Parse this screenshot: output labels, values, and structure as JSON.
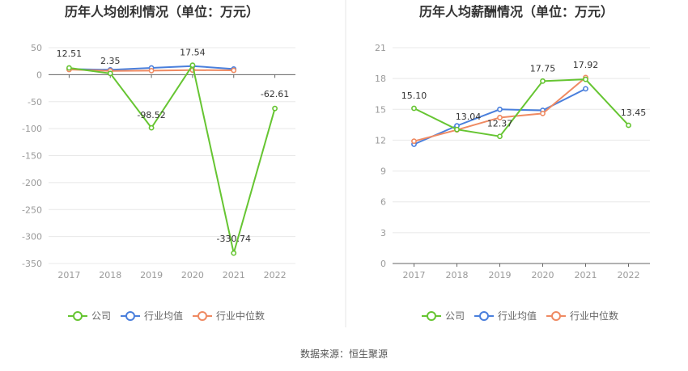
{
  "source_text": "数据来源：恒生聚源",
  "colors": {
    "company": "#66c532",
    "avg": "#4a7fdc",
    "median": "#ef8a62",
    "grid": "#e8e8e8",
    "axis": "#999999",
    "divider": "#e6e6e6"
  },
  "chart_data": [
    {
      "type": "line",
      "title": "历年人均创利情况（单位：万元）",
      "categories": [
        "2017",
        "2018",
        "2019",
        "2020",
        "2021",
        "2022"
      ],
      "ylim": [
        -350,
        50
      ],
      "yticks": [
        50,
        0,
        -50,
        -100,
        -150,
        -200,
        -250,
        -300,
        -350
      ],
      "grid": true,
      "legend": "bottom",
      "series": [
        {
          "name": "公司",
          "color_key": "company",
          "values": [
            12.51,
            2.35,
            -98.52,
            17.54,
            -330.74,
            -62.61
          ],
          "labels": [
            "12.51",
            "2.35",
            "-98.52",
            "17.54",
            "-330.74",
            "-62.61"
          ]
        },
        {
          "name": "行业均值",
          "color_key": "avg",
          "values": [
            10.5,
            9.0,
            12.5,
            16.0,
            10.5,
            null
          ]
        },
        {
          "name": "行业中位数",
          "color_key": "median",
          "values": [
            9.5,
            7.0,
            7.5,
            8.5,
            8.0,
            null
          ]
        }
      ]
    },
    {
      "type": "line",
      "title": "历年人均薪酬情况（单位：万元）",
      "categories": [
        "2017",
        "2018",
        "2019",
        "2020",
        "2021",
        "2022"
      ],
      "ylim": [
        0,
        21
      ],
      "yticks": [
        21,
        18,
        15,
        12,
        9,
        6,
        3,
        0
      ],
      "grid": true,
      "legend": "bottom",
      "series": [
        {
          "name": "公司",
          "color_key": "company",
          "values": [
            15.1,
            13.04,
            12.37,
            17.75,
            17.92,
            13.45
          ],
          "labels": [
            "15.10",
            "13.04",
            "12.37",
            "17.75",
            "17.92",
            "13.45"
          ]
        },
        {
          "name": "行业均值",
          "color_key": "avg",
          "values": [
            11.6,
            13.4,
            15.0,
            14.9,
            17.0,
            null
          ]
        },
        {
          "name": "行业中位数",
          "color_key": "median",
          "values": [
            11.9,
            13.0,
            14.2,
            14.6,
            18.1,
            null
          ]
        }
      ]
    }
  ]
}
